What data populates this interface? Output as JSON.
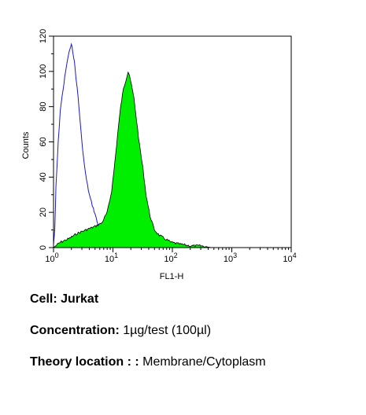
{
  "chart_data": {
    "type": "area",
    "xlabel": "FL1-H",
    "ylabel": "Counts",
    "xscale": "log",
    "xlim": [
      1,
      10000
    ],
    "ylim": [
      0,
      120
    ],
    "x_ticks": [
      {
        "base": "10",
        "exp": "0"
      },
      {
        "base": "10",
        "exp": "1"
      },
      {
        "base": "10",
        "exp": "2"
      },
      {
        "base": "10",
        "exp": "3"
      },
      {
        "base": "10",
        "exp": "4"
      }
    ],
    "y_ticks": [
      "0",
      "20",
      "40",
      "60",
      "80",
      "100",
      "120"
    ],
    "grid": false,
    "series": [
      {
        "role": "control",
        "style": "outline",
        "color": "#1a1acc",
        "points": [
          [
            1.0,
            2
          ],
          [
            1.05,
            10
          ],
          [
            1.1,
            35
          ],
          [
            1.2,
            60
          ],
          [
            1.3,
            78
          ],
          [
            1.45,
            90
          ],
          [
            1.6,
            100
          ],
          [
            1.75,
            108
          ],
          [
            1.9,
            113
          ],
          [
            2.0,
            115
          ],
          [
            2.1,
            112
          ],
          [
            2.25,
            105
          ],
          [
            2.4,
            96
          ],
          [
            2.6,
            85
          ],
          [
            2.8,
            72
          ],
          [
            3.0,
            60
          ],
          [
            3.3,
            47
          ],
          [
            3.6,
            38
          ],
          [
            4.0,
            30
          ],
          [
            4.5,
            24
          ],
          [
            5.0,
            19
          ],
          [
            5.6,
            13
          ],
          [
            6.2,
            8
          ],
          [
            6.8,
            4
          ],
          [
            7.5,
            2
          ],
          [
            8.5,
            0
          ]
        ]
      },
      {
        "role": "sample",
        "style": "filled",
        "color": "#00ee00",
        "edge_color": "#000000",
        "points": [
          [
            1.0,
            0
          ],
          [
            1.3,
            3
          ],
          [
            1.8,
            5
          ],
          [
            2.5,
            8
          ],
          [
            3.5,
            10
          ],
          [
            5.0,
            12
          ],
          [
            6.5,
            14
          ],
          [
            8.0,
            20
          ],
          [
            9.5,
            32
          ],
          [
            10.5,
            45
          ],
          [
            11.5,
            58
          ],
          [
            12.5,
            70
          ],
          [
            13.5,
            80
          ],
          [
            15.0,
            90
          ],
          [
            16.5,
            95
          ],
          [
            18.0,
            100
          ],
          [
            19.0,
            98
          ],
          [
            20.5,
            92
          ],
          [
            22.5,
            85
          ],
          [
            25.0,
            72
          ],
          [
            28.0,
            58
          ],
          [
            32.0,
            45
          ],
          [
            36.0,
            30
          ],
          [
            42.0,
            18
          ],
          [
            50.0,
            10
          ],
          [
            60.0,
            7
          ],
          [
            75.0,
            5
          ],
          [
            95.0,
            3
          ],
          [
            130.0,
            2
          ],
          [
            200.0,
            1
          ],
          [
            300.0,
            1
          ],
          [
            450.0,
            0
          ]
        ]
      }
    ]
  },
  "caption": {
    "cell_label": "Cell:",
    "cell_value": "Jurkat",
    "concentration_label": "Concentration:",
    "concentration_value": "1µg/test (100µl)",
    "location_label": "Theory location : :",
    "location_value": "Membrane/Cytoplasm"
  }
}
